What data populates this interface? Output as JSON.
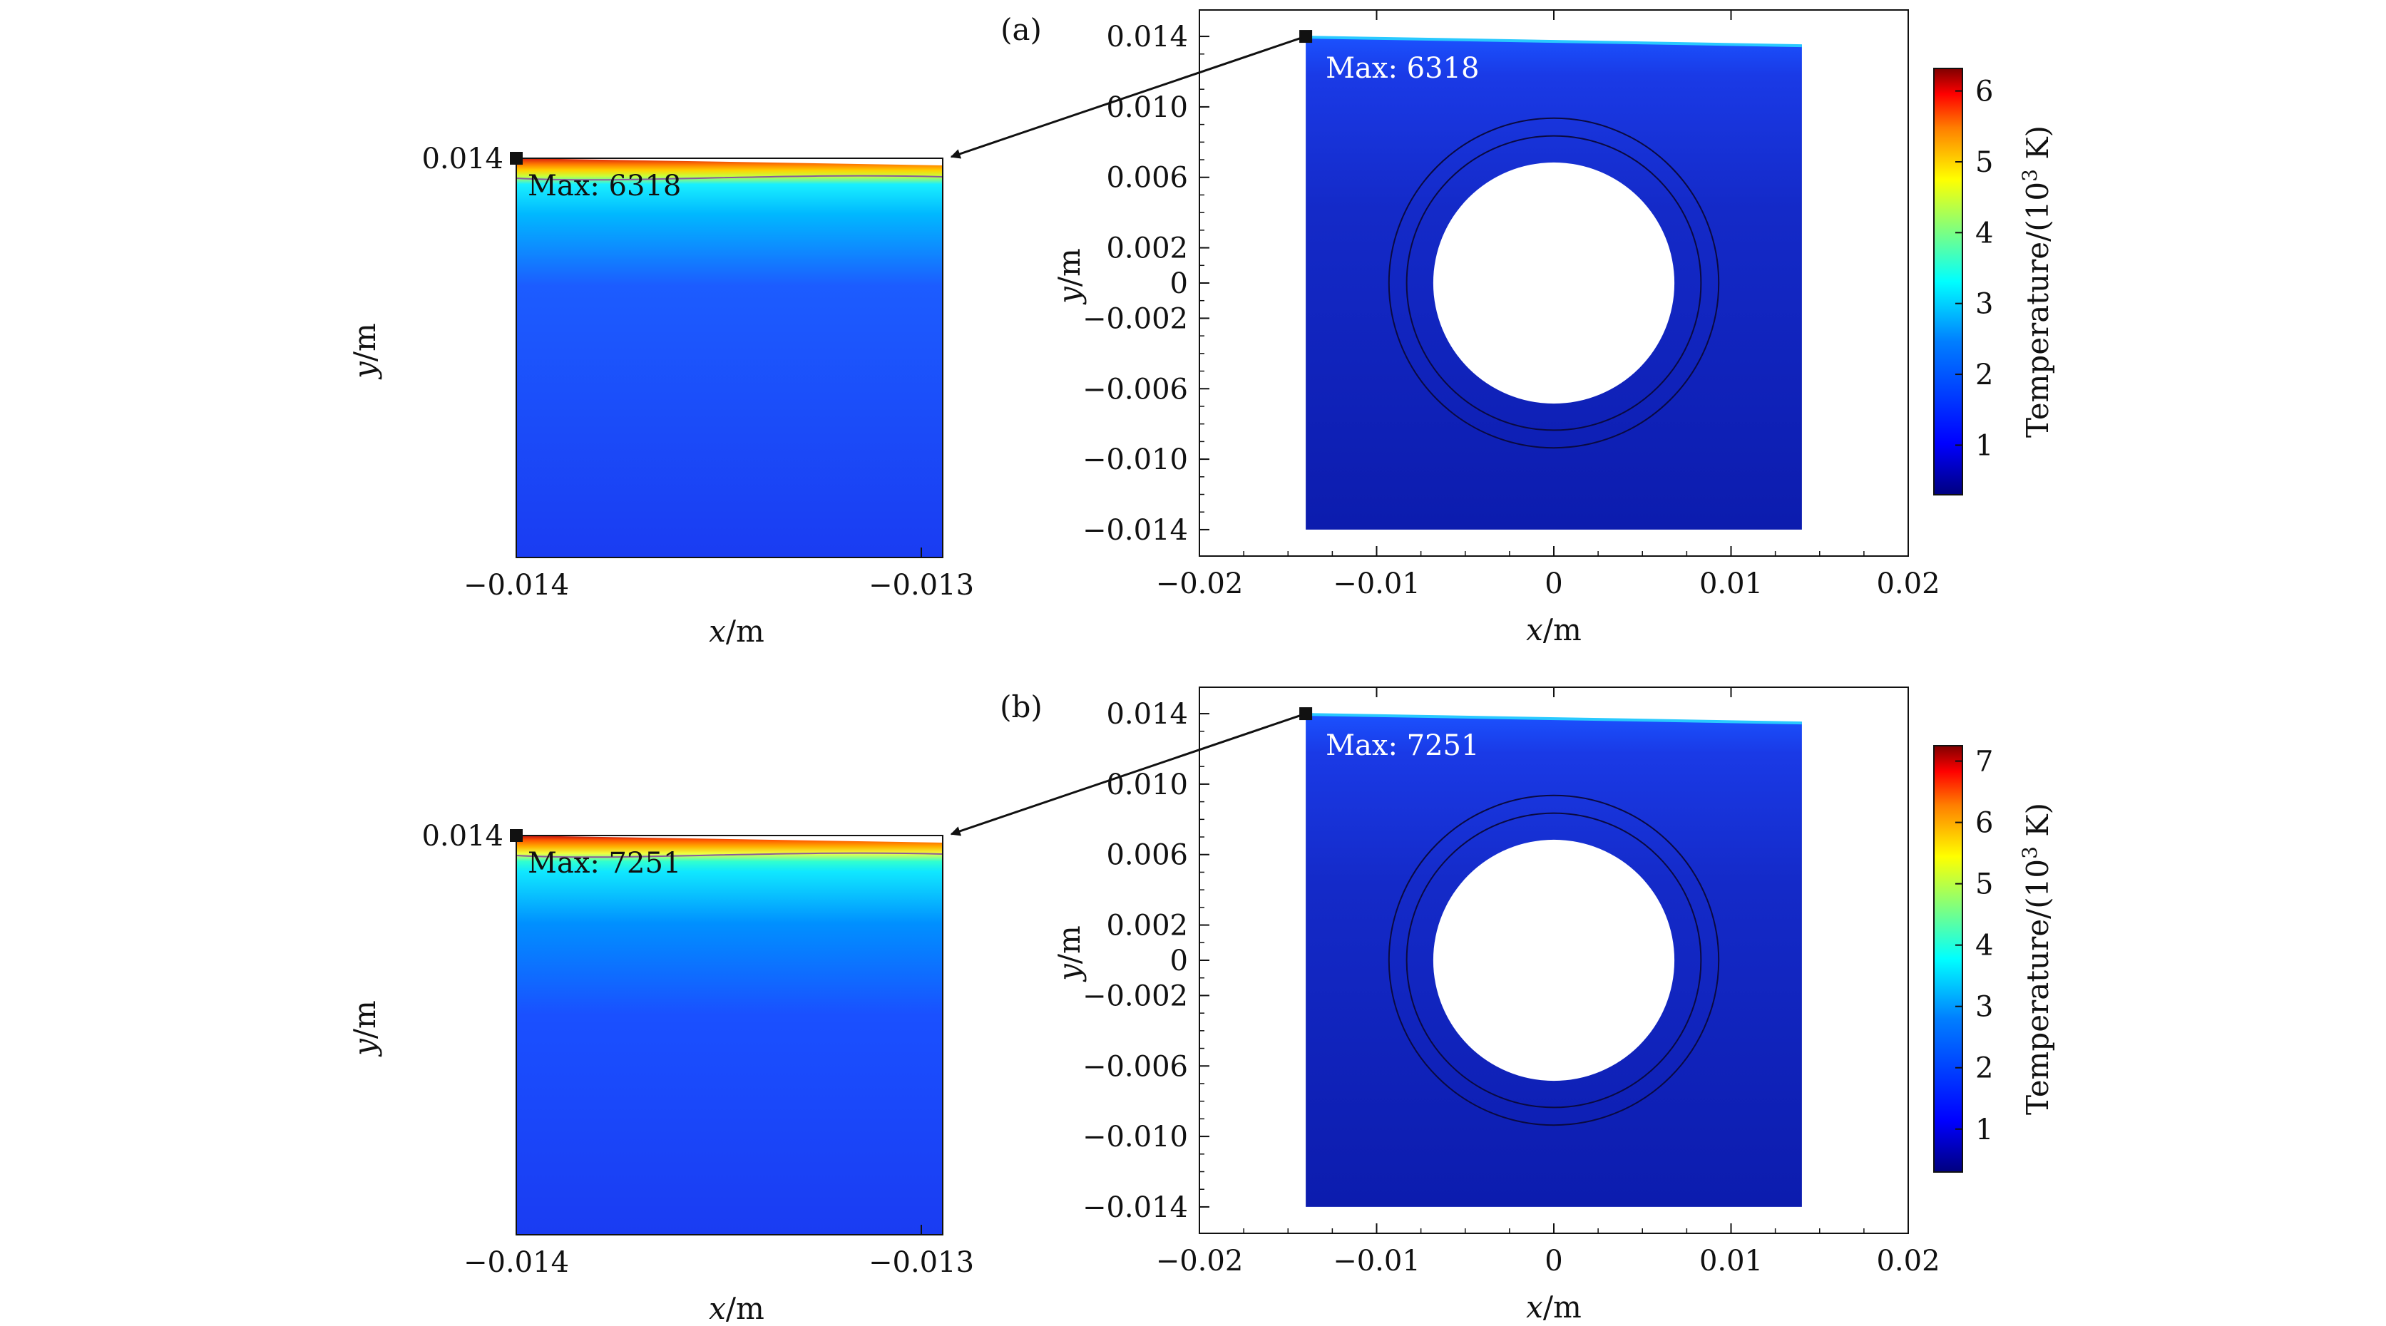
{
  "chart_data": [
    {
      "panel_label": "(a)",
      "type": "heatmap",
      "zoom": {
        "xlabel": "x/m",
        "ylabel": "y/m",
        "x_ticks": [
          "−0.014",
          "−0.013"
        ],
        "y_ticks": [
          "0.014"
        ],
        "max_label": "Max: 6318"
      },
      "main": {
        "xlabel": "x/m",
        "ylabel": "y/m",
        "xlim": [
          -0.02,
          0.02
        ],
        "ylim": [
          -0.0155,
          0.0155
        ],
        "x_ticks": [
          {
            "value": -0.02,
            "label": "−0.02"
          },
          {
            "value": -0.01,
            "label": "−0.01"
          },
          {
            "value": 0,
            "label": "0"
          },
          {
            "value": 0.01,
            "label": "0.01"
          },
          {
            "value": 0.02,
            "label": "0.02"
          }
        ],
        "y_ticks": [
          {
            "value": 0.014,
            "label": "0.014"
          },
          {
            "value": 0.01,
            "label": "0.010"
          },
          {
            "value": 0.006,
            "label": "0.006"
          },
          {
            "value": 0.002,
            "label": "0.002"
          },
          {
            "value": 0,
            "label": "0"
          },
          {
            "value": -0.002,
            "label": "−0.002"
          },
          {
            "value": -0.006,
            "label": "−0.006"
          },
          {
            "value": -0.01,
            "label": "−0.010"
          },
          {
            "value": -0.014,
            "label": "−0.014"
          }
        ],
        "domain_x": [
          -0.014,
          0.014
        ],
        "domain_y": [
          -0.014,
          0.014
        ],
        "hole_radius": 0.006,
        "ring_radii": [
          0.0075,
          0.0085
        ],
        "max_label": "Max: 6318",
        "max_point": [
          -0.014,
          0.014
        ]
      },
      "colorbar": {
        "label_prefix": "Temperature/(10",
        "label_sup": "3",
        "label_suffix": " K)",
        "range": [
          0.3,
          6.318
        ],
        "ticks": [
          {
            "value": 1,
            "label": "1"
          },
          {
            "value": 2,
            "label": "2"
          },
          {
            "value": 3,
            "label": "3"
          },
          {
            "value": 4,
            "label": "4"
          },
          {
            "value": 5,
            "label": "5"
          },
          {
            "value": 6,
            "label": "6"
          }
        ]
      }
    },
    {
      "panel_label": "(b)",
      "type": "heatmap",
      "zoom": {
        "xlabel": "x/m",
        "ylabel": "y/m",
        "x_ticks": [
          "−0.014",
          "−0.013"
        ],
        "y_ticks": [
          "0.014"
        ],
        "max_label": "Max: 7251"
      },
      "main": {
        "xlabel": "x/m",
        "ylabel": "y/m",
        "xlim": [
          -0.02,
          0.02
        ],
        "ylim": [
          -0.0155,
          0.0155
        ],
        "x_ticks": [
          {
            "value": -0.02,
            "label": "−0.02"
          },
          {
            "value": -0.01,
            "label": "−0.01"
          },
          {
            "value": 0,
            "label": "0"
          },
          {
            "value": 0.01,
            "label": "0.01"
          },
          {
            "value": 0.02,
            "label": "0.02"
          }
        ],
        "y_ticks": [
          {
            "value": 0.014,
            "label": "0.014"
          },
          {
            "value": 0.01,
            "label": "0.010"
          },
          {
            "value": 0.006,
            "label": "0.006"
          },
          {
            "value": 0.002,
            "label": "0.002"
          },
          {
            "value": 0,
            "label": "0"
          },
          {
            "value": -0.002,
            "label": "−0.002"
          },
          {
            "value": -0.006,
            "label": "−0.006"
          },
          {
            "value": -0.01,
            "label": "−0.010"
          },
          {
            "value": -0.014,
            "label": "−0.014"
          }
        ],
        "domain_x": [
          -0.014,
          0.014
        ],
        "domain_y": [
          -0.014,
          0.014
        ],
        "hole_radius": 0.006,
        "ring_radii": [
          0.0075,
          0.0085
        ],
        "max_label": "Max: 7251",
        "max_point": [
          -0.014,
          0.014
        ]
      },
      "colorbar": {
        "label_prefix": "Temperature/(10",
        "label_sup": "3",
        "label_suffix": " K)",
        "range": [
          0.3,
          7.251
        ],
        "ticks": [
          {
            "value": 1,
            "label": "1"
          },
          {
            "value": 2,
            "label": "2"
          },
          {
            "value": 3,
            "label": "3"
          },
          {
            "value": 4,
            "label": "4"
          },
          {
            "value": 5,
            "label": "5"
          },
          {
            "value": 6,
            "label": "6"
          },
          {
            "value": 7,
            "label": "7"
          }
        ]
      }
    }
  ],
  "colors": {
    "deep_blue": "#0b1fb0",
    "field_blue": "#1a3cf2",
    "jet": [
      "#00007f",
      "#0000ff",
      "#007fff",
      "#00ffff",
      "#7fff7f",
      "#ffff00",
      "#ff7f00",
      "#ff0000",
      "#7f0000"
    ]
  }
}
